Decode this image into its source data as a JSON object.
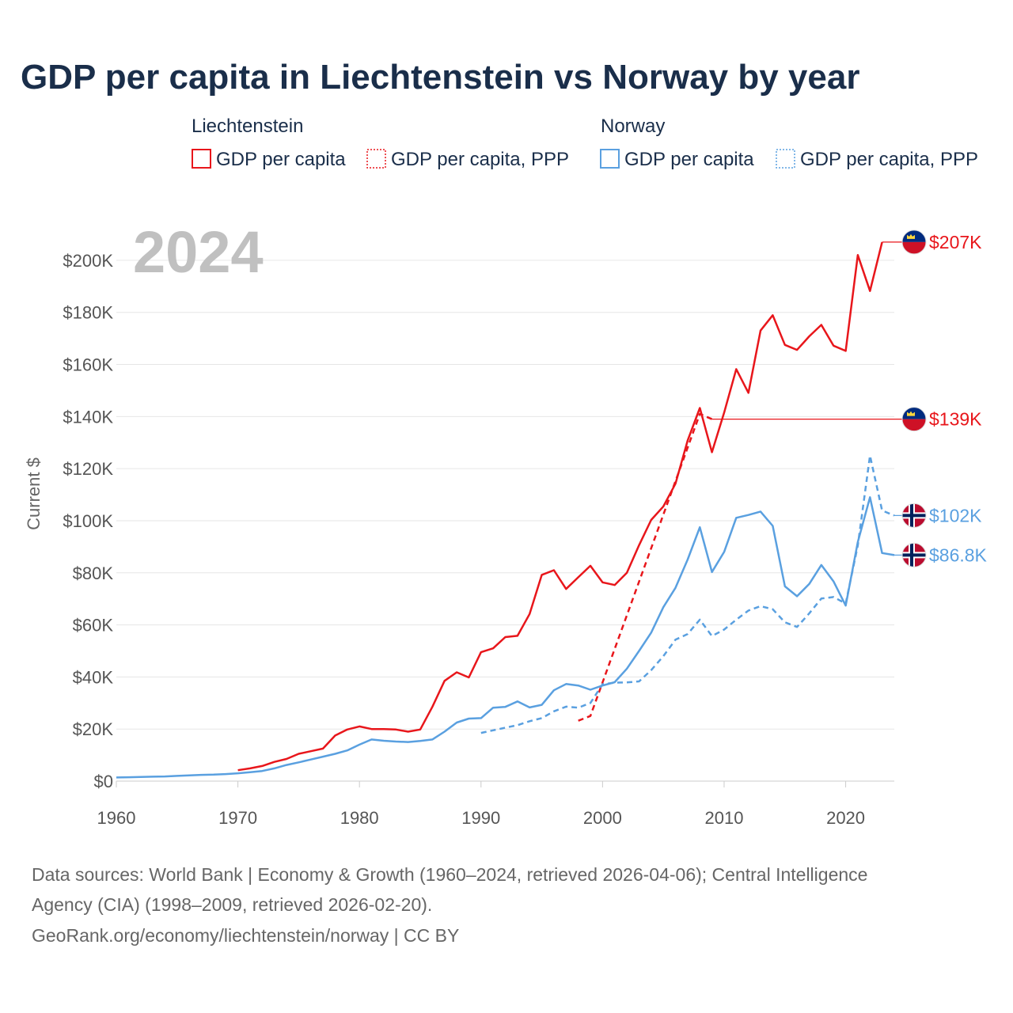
{
  "colors": {
    "liechtenstein": "#e8161b",
    "norway": "#5aa0e0",
    "title": "#1a2e4a",
    "grid": "#e6e6e6",
    "tick": "#555555",
    "watermark": "#c0c0c0"
  },
  "legend": {
    "groups": [
      {
        "name": "Liechtenstein",
        "items": [
          {
            "label": "GDP per capita",
            "style": "solid",
            "color_key": "liechtenstein"
          },
          {
            "label": "GDP per capita, PPP",
            "style": "dotted",
            "color_key": "liechtenstein"
          }
        ]
      },
      {
        "name": "Norway",
        "items": [
          {
            "label": "GDP per capita",
            "style": "solid",
            "color_key": "norway"
          },
          {
            "label": "GDP per capita, PPP",
            "style": "dotted",
            "color_key": "norway"
          }
        ]
      }
    ]
  },
  "year_watermark": "2024",
  "source_lines": [
    "Data sources: World Bank | Economy & Growth (1960–2024, retrieved 2026-04-06); Central Intelligence",
    "Agency (CIA) (1998–2009, retrieved 2026-02-20).",
    "GeoRank.org/economy/liechtenstein/norway | CC BY"
  ],
  "chart_data": {
    "type": "line",
    "title": "GDP per capita in Liechtenstein vs Norway by year",
    "xlabel": "",
    "ylabel": "Current $",
    "xlim": [
      1960,
      2024
    ],
    "ylim": [
      0,
      210000
    ],
    "x_ticks": [
      1960,
      1970,
      1980,
      1990,
      2000,
      2010,
      2020
    ],
    "x_tick_labels": [
      "1960",
      "1970",
      "1980",
      "1990",
      "2000",
      "2010",
      "2020"
    ],
    "y_ticks": [
      0,
      20000,
      40000,
      60000,
      80000,
      100000,
      120000,
      140000,
      160000,
      180000,
      200000
    ],
    "y_tick_labels": [
      "$0",
      "$20K",
      "$40K",
      "$60K",
      "$80K",
      "$100K",
      "$120K",
      "$140K",
      "$160K",
      "$180K",
      "$200K"
    ],
    "grid": true,
    "series": [
      {
        "name": "Liechtenstein GDP per capita",
        "country": "Liechtenstein",
        "style": "solid",
        "color_key": "liechtenstein",
        "end_label": "$207K",
        "end_value": 207000,
        "x": [
          1970,
          1971,
          1972,
          1973,
          1974,
          1975,
          1976,
          1977,
          1978,
          1979,
          1980,
          1981,
          1982,
          1983,
          1984,
          1985,
          1986,
          1987,
          1988,
          1989,
          1990,
          1991,
          1992,
          1993,
          1994,
          1995,
          1996,
          1997,
          1998,
          1999,
          2000,
          2001,
          2002,
          2003,
          2004,
          2005,
          2006,
          2007,
          2008,
          2009,
          2010,
          2011,
          2012,
          2013,
          2014,
          2015,
          2016,
          2017,
          2018,
          2019,
          2020,
          2021,
          2022,
          2023
        ],
        "values": [
          4200,
          4900,
          5800,
          7400,
          8500,
          10500,
          11500,
          12500,
          17500,
          19800,
          21000,
          20000,
          20000,
          19800,
          19000,
          19800,
          28500,
          38500,
          41800,
          39800,
          49500,
          51000,
          55300,
          55800,
          64200,
          79200,
          81000,
          73800,
          78300,
          82700,
          76300,
          75300,
          80000,
          90600,
          100300,
          105500,
          114200,
          130800,
          143300,
          126300,
          141500,
          158200,
          149100,
          173000,
          178900,
          167500,
          165600,
          170800,
          175200,
          167200,
          165200,
          202000,
          188200,
          207000
        ]
      },
      {
        "name": "Liechtenstein GDP per capita, PPP",
        "country": "Liechtenstein",
        "style": "dotted",
        "color_key": "liechtenstein",
        "end_label": "$139K",
        "end_value": 139000,
        "x": [
          1998,
          1999,
          2008,
          2009
        ],
        "values": [
          23200,
          25000,
          141000,
          139000
        ]
      },
      {
        "name": "Norway GDP per capita",
        "country": "Norway",
        "style": "solid",
        "color_key": "norway",
        "end_label": "$86.8K",
        "end_value": 86800,
        "x": [
          1960,
          1961,
          1962,
          1963,
          1964,
          1965,
          1966,
          1967,
          1968,
          1969,
          1970,
          1971,
          1972,
          1973,
          1974,
          1975,
          1976,
          1977,
          1978,
          1979,
          1980,
          1981,
          1982,
          1983,
          1984,
          1985,
          1986,
          1987,
          1988,
          1989,
          1990,
          1991,
          1992,
          1993,
          1994,
          1995,
          1996,
          1997,
          1998,
          1999,
          2000,
          2001,
          2002,
          2003,
          2004,
          2005,
          2006,
          2007,
          2008,
          2009,
          2010,
          2011,
          2012,
          2013,
          2014,
          2015,
          2016,
          2017,
          2018,
          2019,
          2020,
          2021,
          2022,
          2023,
          2024
        ],
        "values": [
          1400,
          1500,
          1600,
          1700,
          1800,
          2000,
          2200,
          2400,
          2500,
          2700,
          3000,
          3400,
          3900,
          4900,
          6200,
          7200,
          8300,
          9400,
          10500,
          11800,
          14000,
          16000,
          15500,
          15200,
          15000,
          15400,
          16000,
          19000,
          22500,
          24000,
          24200,
          28200,
          28500,
          30600,
          28300,
          29300,
          34900,
          37300,
          36700,
          35100,
          36700,
          38000,
          43200,
          50000,
          57000,
          66800,
          74200,
          85100,
          97500,
          80300,
          88000,
          101100,
          102200,
          103500,
          98000,
          74800,
          71000,
          75700,
          83000,
          76700,
          67400,
          91800,
          109000,
          87600,
          86800
        ]
      },
      {
        "name": "Norway GDP per capita, PPP",
        "country": "Norway",
        "style": "dotted",
        "color_key": "norway",
        "end_label": "$102K",
        "end_value": 102000,
        "x": [
          1990,
          1991,
          1992,
          1993,
          1994,
          1995,
          1996,
          1997,
          1998,
          1999,
          2000,
          2001,
          2002,
          2003,
          2004,
          2005,
          2006,
          2007,
          2008,
          2009,
          2010,
          2011,
          2012,
          2013,
          2014,
          2015,
          2016,
          2017,
          2018,
          2019,
          2020,
          2021,
          2022,
          2023,
          2024
        ],
        "values": [
          18500,
          19500,
          20500,
          21500,
          23000,
          24200,
          26800,
          28600,
          28200,
          30000,
          37200,
          37800,
          37900,
          38300,
          42600,
          48000,
          54300,
          56500,
          62000,
          55700,
          58200,
          62000,
          65500,
          67200,
          66000,
          61000,
          59200,
          64400,
          70100,
          70700,
          68200,
          90500,
          125000,
          103900,
          102000
        ]
      }
    ]
  }
}
